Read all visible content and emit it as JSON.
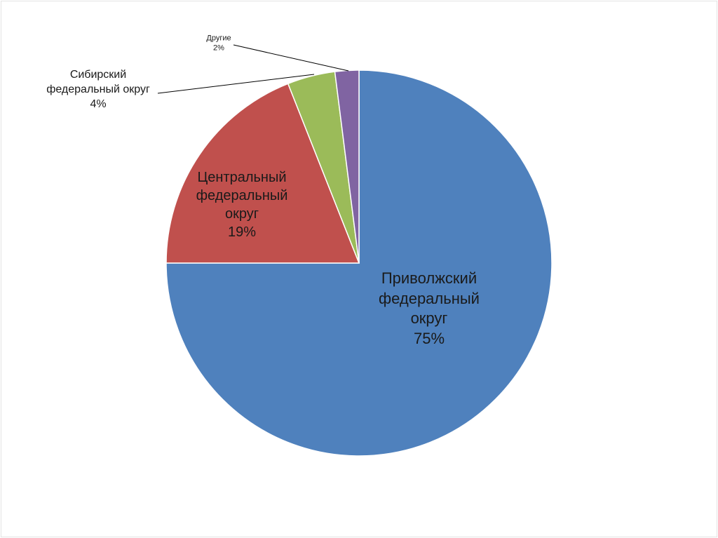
{
  "chart_data": {
    "type": "pie",
    "categories": [
      "Приволжский федеральный округ",
      "Центральный федеральный округ",
      "Сибирский федеральный округ",
      "Другие"
    ],
    "values": [
      75,
      19,
      4,
      2
    ],
    "value_labels": [
      "75%",
      "19%",
      "4%",
      "2%"
    ],
    "colors": [
      "#4f81bd",
      "#c0504d",
      "#9bbb59",
      "#8064a2"
    ]
  }
}
